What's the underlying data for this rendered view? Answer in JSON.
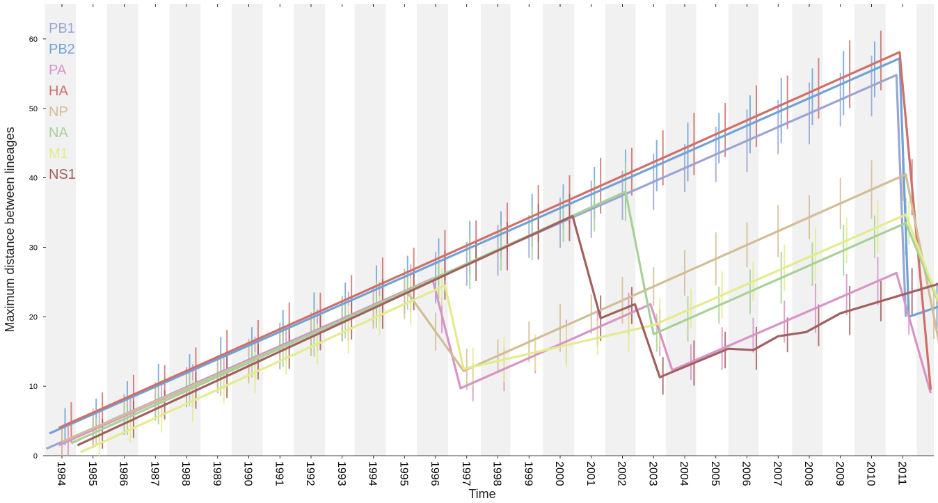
{
  "chart_data": {
    "type": "line",
    "title": "",
    "xlabel": "Time",
    "ylabel": "Maximum distance between lineages",
    "xlim": [
      1983.45,
      2012.5
    ],
    "ylim": [
      0,
      65
    ],
    "yticks": [
      0,
      10,
      20,
      30,
      40,
      50,
      60
    ],
    "xticks": [
      "1984",
      "1985",
      "1986",
      "1987",
      "1988",
      "1989",
      "1990",
      "1991",
      "1992",
      "1993",
      "1994",
      "1995",
      "1996",
      "1997",
      "1998",
      "1999",
      "2000",
      "2001",
      "2002",
      "2003",
      "2004",
      "2005",
      "2006",
      "2007",
      "2008",
      "2009",
      "2010",
      "2011"
    ],
    "grid": false,
    "background_bands": "alternating grey vertical bands",
    "legend_position": "top-left",
    "series": [
      {
        "name": "PB1",
        "color": "#9ba5d5",
        "points": [
          [
            1983.5,
            1.0
          ],
          [
            2010.8,
            54.8
          ],
          [
            2011.1,
            20.0
          ]
        ]
      },
      {
        "name": "PB2",
        "color": "#6fa3d6",
        "points": [
          [
            1983.6,
            3.2
          ],
          [
            2010.9,
            57.2
          ],
          [
            2011.2,
            20.0
          ],
          [
            2012.5,
            22.0
          ]
        ]
      },
      {
        "name": "PA",
        "color": "#d794c6",
        "points": [
          [
            1983.9,
            1.5
          ],
          [
            1995.9,
            25.5
          ],
          [
            1996.8,
            9.7
          ],
          [
            2002.9,
            21.8
          ],
          [
            2003.6,
            12.3
          ],
          [
            2010.8,
            26.3
          ],
          [
            2011.9,
            9.0
          ]
        ]
      },
      {
        "name": "HA",
        "color": "#cf6e6a",
        "points": [
          [
            1983.9,
            4.0
          ],
          [
            2010.9,
            58.1
          ],
          [
            2011.9,
            9.5
          ]
        ]
      },
      {
        "name": "NP",
        "color": "#d3bd94",
        "points": [
          [
            1984.0,
            2.0
          ],
          [
            1995.1,
            23.5
          ],
          [
            1996.9,
            12.2
          ],
          [
            2011.1,
            40.5
          ],
          [
            2012.4,
            11.0
          ]
        ]
      },
      {
        "name": "NA",
        "color": "#a7d198",
        "points": [
          [
            1984.3,
            1.8
          ],
          [
            2002.1,
            38.0
          ],
          [
            2003.0,
            17.5
          ],
          [
            2011.1,
            33.5
          ],
          [
            2012.2,
            21.5
          ]
        ]
      },
      {
        "name": "M1",
        "color": "#e3eb8c",
        "points": [
          [
            1984.6,
            0.5
          ],
          [
            1996.3,
            24.5
          ],
          [
            1996.9,
            12.5
          ],
          [
            2003.0,
            18.8
          ],
          [
            2011.1,
            34.7
          ],
          [
            2012.3,
            20.5
          ]
        ]
      },
      {
        "name": "NS1",
        "color": "#a35f60",
        "points": [
          [
            1984.5,
            1.5
          ],
          [
            2000.4,
            34.5
          ],
          [
            2001.3,
            19.8
          ],
          [
            2002.4,
            21.8
          ],
          [
            2003.2,
            11.3
          ],
          [
            2004.6,
            13.9
          ],
          [
            2005.4,
            15.4
          ],
          [
            2006.2,
            15.2
          ],
          [
            2007.0,
            17.2
          ],
          [
            2007.9,
            17.8
          ],
          [
            2009.0,
            20.5
          ],
          [
            2012.5,
            25.2
          ]
        ]
      }
    ]
  }
}
